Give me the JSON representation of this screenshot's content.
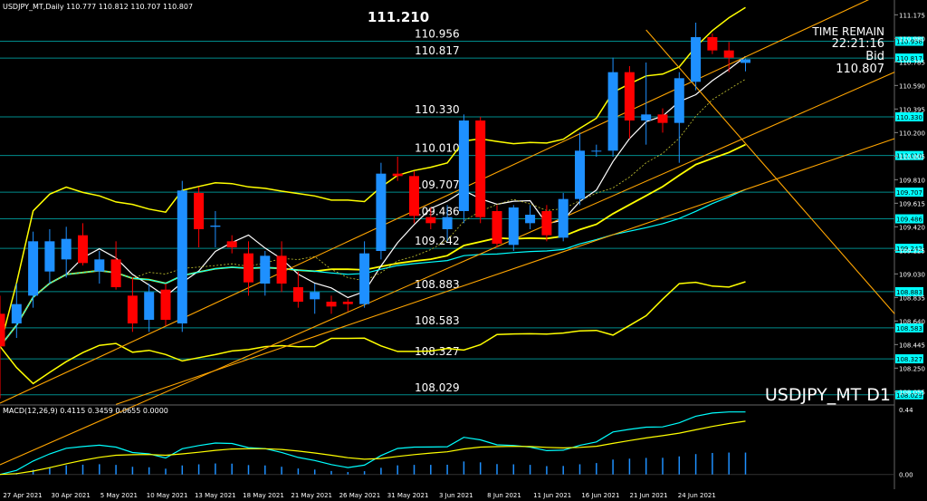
{
  "header": {
    "symbol_info": "USDJPY_MT,Daily  110.777 110.812 110.707 110.807",
    "macd_info": "MACD(12,26,9) 0.4115 0.3459 0.0655 0.0000"
  },
  "overlay": {
    "time_remain_label": "TIME REMAIN",
    "time_remain_value": "22:21:16",
    "bid_label": "Bid",
    "bid_value": "110.807",
    "symbol_big": "USDJPY_MT D1",
    "high_marker": "111.210"
  },
  "price_scale": [
    "111.175",
    "110.980",
    "110.785",
    "110.590",
    "110.395",
    "110.200",
    "110.005",
    "109.810",
    "109.615",
    "109.420",
    "109.225",
    "109.030",
    "108.835",
    "108.640",
    "108.445",
    "108.250",
    "108.055"
  ],
  "macd_scale": [
    "0.44",
    "0.00"
  ],
  "date_labels": [
    "27 Apr 2021",
    "30 Apr 2021",
    "5 May 2021",
    "10 May 2021",
    "13 May 2021",
    "18 May 2021",
    "21 May 2021",
    "26 May 2021",
    "31 May 2021",
    "3 Jun 2021",
    "8 Jun 2021",
    "11 Jun 2021",
    "16 Jun 2021",
    "21 Jun 2021",
    "24 Jun 2021"
  ],
  "levels": [
    {
      "label": "110.956",
      "tag": "110.956",
      "value": 110.956
    },
    {
      "label": "110.817",
      "tag": "110.817",
      "value": 110.817
    },
    {
      "label": "110.330",
      "tag": "110.330",
      "value": 110.33
    },
    {
      "label": "110.010",
      "tag": "110.010",
      "value": 110.01
    },
    {
      "label": "109.707",
      "tag": "109.707",
      "value": 109.707
    },
    {
      "label": "109.486",
      "tag": "109.486",
      "value": 109.486
    },
    {
      "label": "109.242",
      "tag": "109.242",
      "value": 109.242
    },
    {
      "label": "108.883",
      "tag": "108.883",
      "value": 108.883
    },
    {
      "label": "108.583",
      "tag": "108.583",
      "value": 108.583
    },
    {
      "label": "108.327",
      "tag": "108.327",
      "value": 108.327
    },
    {
      "label": "108.029",
      "tag": "108.029",
      "value": 108.029
    }
  ],
  "colors": {
    "background": "#000000",
    "bull": "#1e90ff",
    "bear": "#ff0000",
    "level_line": "#008b8b",
    "level_tag_bg": "#00ffff",
    "channel": "#ffa500",
    "bollinger": "#ffff00",
    "ma_white": "#ffffff",
    "macd_line": "#00ffff",
    "macd_signal": "#ffff00"
  },
  "chart_data": {
    "type": "candlestick",
    "symbol": "USDJPY_MT",
    "timeframe": "Daily",
    "ylim": [
      107.96,
      111.2
    ],
    "candles": [
      {
        "o": 108.7,
        "h": 108.85,
        "l": 108.0,
        "c": 108.43
      },
      {
        "o": 108.62,
        "h": 108.95,
        "l": 108.5,
        "c": 108.78
      },
      {
        "o": 108.85,
        "h": 109.38,
        "l": 108.75,
        "c": 109.3
      },
      {
        "o": 109.05,
        "h": 109.4,
        "l": 108.95,
        "c": 109.3
      },
      {
        "o": 109.15,
        "h": 109.42,
        "l": 109.0,
        "c": 109.32
      },
      {
        "o": 109.35,
        "h": 109.45,
        "l": 109.1,
        "c": 109.12
      },
      {
        "o": 109.05,
        "h": 109.22,
        "l": 108.95,
        "c": 109.15
      },
      {
        "o": 109.15,
        "h": 109.3,
        "l": 108.9,
        "c": 108.92
      },
      {
        "o": 108.85,
        "h": 109.0,
        "l": 108.55,
        "c": 108.62
      },
      {
        "o": 108.65,
        "h": 108.95,
        "l": 108.55,
        "c": 108.88
      },
      {
        "o": 108.9,
        "h": 108.95,
        "l": 108.6,
        "c": 108.65
      },
      {
        "o": 108.62,
        "h": 109.8,
        "l": 108.55,
        "c": 109.72
      },
      {
        "o": 109.7,
        "h": 109.75,
        "l": 109.25,
        "c": 109.4
      },
      {
        "o": 109.42,
        "h": 109.55,
        "l": 109.25,
        "c": 109.43
      },
      {
        "o": 109.3,
        "h": 109.35,
        "l": 109.2,
        "c": 109.25
      },
      {
        "o": 109.2,
        "h": 109.3,
        "l": 108.85,
        "c": 108.96
      },
      {
        "o": 108.95,
        "h": 109.22,
        "l": 108.85,
        "c": 109.18
      },
      {
        "o": 109.18,
        "h": 109.3,
        "l": 108.88,
        "c": 108.95
      },
      {
        "o": 108.92,
        "h": 109.05,
        "l": 108.75,
        "c": 108.8
      },
      {
        "o": 108.82,
        "h": 108.95,
        "l": 108.7,
        "c": 108.88
      },
      {
        "o": 108.8,
        "h": 108.85,
        "l": 108.7,
        "c": 108.76
      },
      {
        "o": 108.8,
        "h": 108.82,
        "l": 108.72,
        "c": 108.78
      },
      {
        "o": 108.78,
        "h": 109.3,
        "l": 108.75,
        "c": 109.2
      },
      {
        "o": 109.22,
        "h": 109.95,
        "l": 109.15,
        "c": 109.86
      },
      {
        "o": 109.86,
        "h": 110.0,
        "l": 109.8,
        "c": 109.84
      },
      {
        "o": 109.84,
        "h": 109.88,
        "l": 109.45,
        "c": 109.51
      },
      {
        "o": 109.5,
        "h": 109.58,
        "l": 109.4,
        "c": 109.45
      },
      {
        "o": 109.4,
        "h": 109.6,
        "l": 109.3,
        "c": 109.5
      },
      {
        "o": 109.55,
        "h": 110.35,
        "l": 109.45,
        "c": 110.3
      },
      {
        "o": 110.3,
        "h": 110.33,
        "l": 109.45,
        "c": 109.5
      },
      {
        "o": 109.55,
        "h": 109.6,
        "l": 109.25,
        "c": 109.28
      },
      {
        "o": 109.27,
        "h": 109.6,
        "l": 109.22,
        "c": 109.58
      },
      {
        "o": 109.45,
        "h": 109.6,
        "l": 109.4,
        "c": 109.52
      },
      {
        "o": 109.55,
        "h": 109.6,
        "l": 109.3,
        "c": 109.35
      },
      {
        "o": 109.33,
        "h": 109.7,
        "l": 109.3,
        "c": 109.65
      },
      {
        "o": 109.65,
        "h": 110.2,
        "l": 109.6,
        "c": 110.05
      },
      {
        "o": 110.05,
        "h": 110.1,
        "l": 110.0,
        "c": 110.05
      },
      {
        "o": 110.05,
        "h": 110.82,
        "l": 110.0,
        "c": 110.7
      },
      {
        "o": 110.7,
        "h": 110.75,
        "l": 110.15,
        "c": 110.3
      },
      {
        "o": 110.3,
        "h": 110.78,
        "l": 110.1,
        "c": 110.35
      },
      {
        "o": 110.35,
        "h": 110.4,
        "l": 110.2,
        "c": 110.28
      },
      {
        "o": 110.28,
        "h": 110.7,
        "l": 109.95,
        "c": 110.65
      },
      {
        "o": 110.62,
        "h": 111.11,
        "l": 110.55,
        "c": 110.99
      },
      {
        "o": 110.99,
        "h": 111.02,
        "l": 110.85,
        "c": 110.88
      },
      {
        "o": 110.88,
        "h": 110.95,
        "l": 110.7,
        "c": 110.82
      },
      {
        "o": 110.777,
        "h": 110.812,
        "l": 110.707,
        "c": 110.807
      }
    ]
  }
}
